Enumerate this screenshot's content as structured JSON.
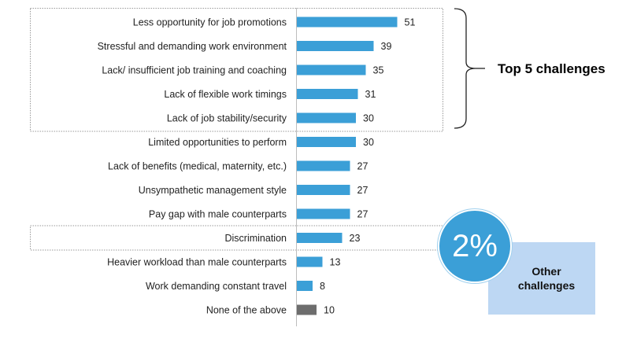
{
  "chart_data": {
    "type": "bar",
    "orientation": "horizontal",
    "categories": [
      "Less opportunity for job promotions",
      "Stressful and demanding work environment",
      "Lack/ insufficient job training and coaching",
      "Lack of flexible work timings",
      "Lack of job stability/security",
      "Limited opportunities to perform",
      "Lack of benefits (medical, maternity, etc.)",
      "Unsympathetic management style",
      "Pay gap with male counterparts",
      "Discrimination",
      "Heavier workload than male counterparts",
      "Work demanding constant travel",
      "None of the above"
    ],
    "values": [
      51,
      39,
      35,
      31,
      30,
      30,
      27,
      27,
      27,
      23,
      13,
      8,
      10
    ],
    "bar_colors": [
      "#3b9fd7",
      "#3b9fd7",
      "#3b9fd7",
      "#3b9fd7",
      "#3b9fd7",
      "#3b9fd7",
      "#3b9fd7",
      "#3b9fd7",
      "#3b9fd7",
      "#3b9fd7",
      "#3b9fd7",
      "#3b9fd7",
      "#6d6d6d"
    ],
    "xlim": [
      0,
      60
    ],
    "grid": false,
    "highlight_group": {
      "label": "Top 5 challenges",
      "categories_count": 5
    },
    "highlight_single": "Discrimination"
  },
  "callout": {
    "percent": "2%",
    "text_line1": "Other",
    "text_line2": "challenges",
    "circle_color": "#3b9fd7",
    "box_color": "#bdd7f3"
  }
}
